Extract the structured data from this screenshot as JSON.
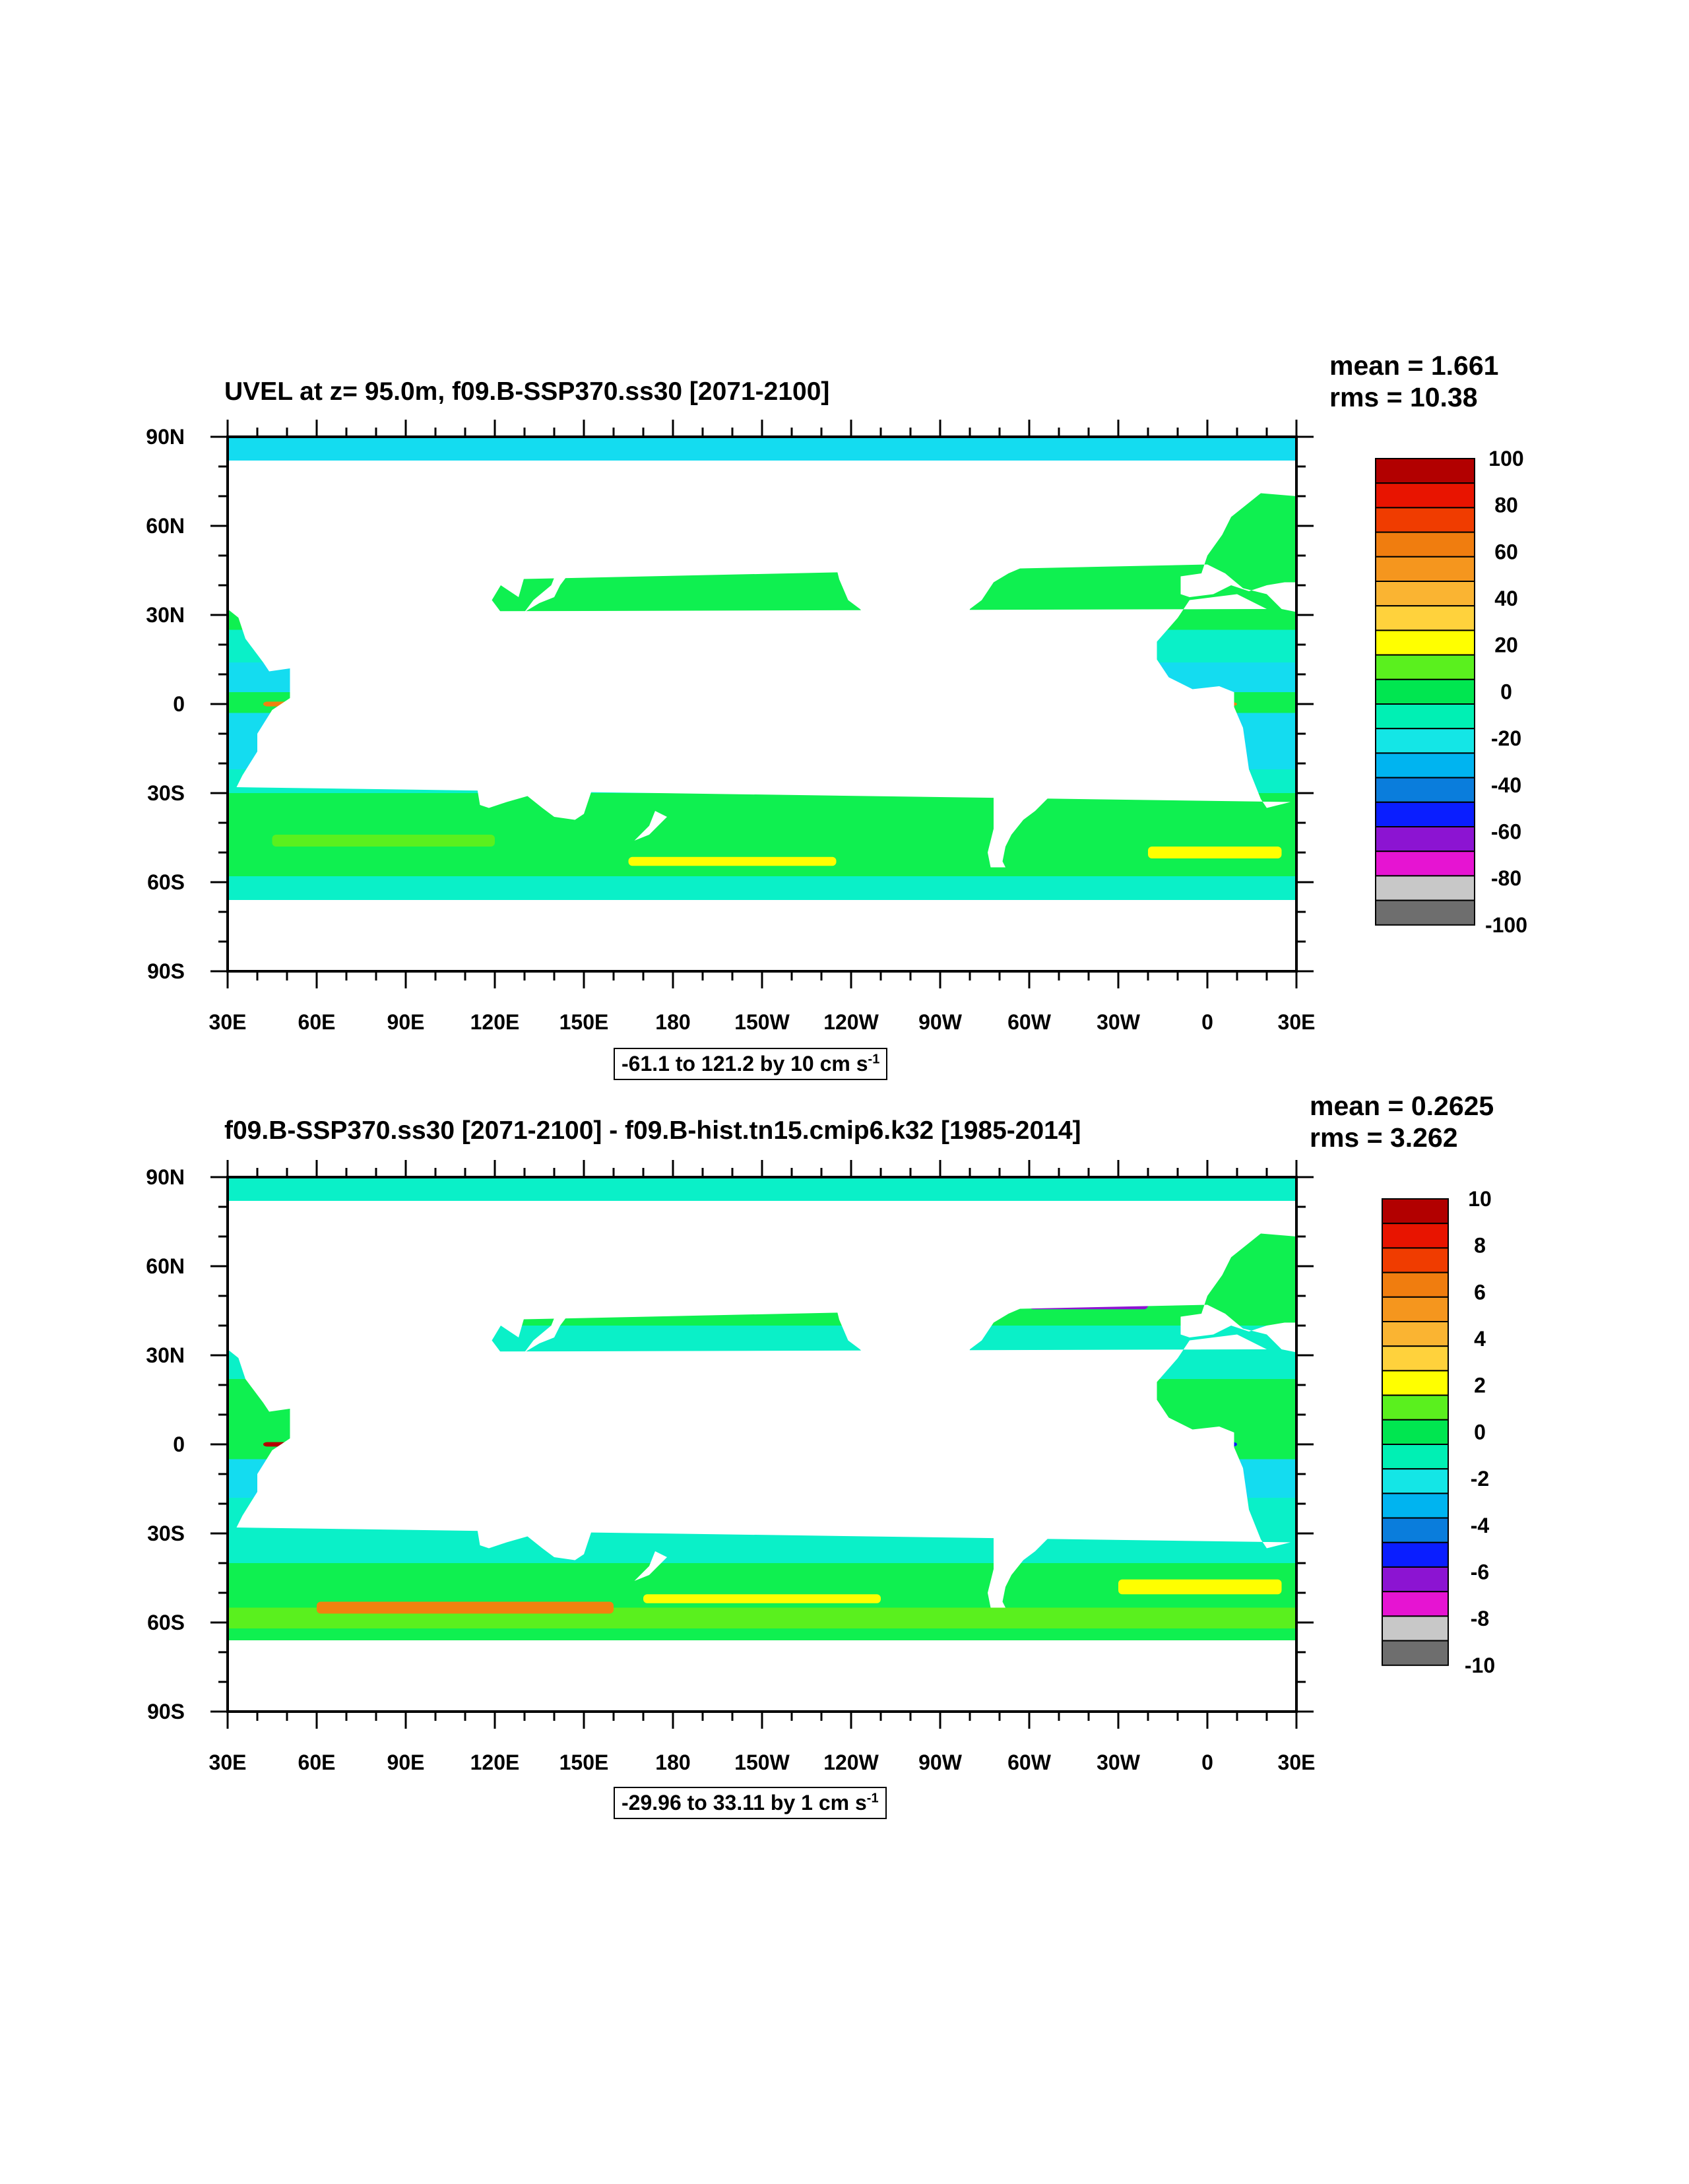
{
  "panels": [
    {
      "title": "UVEL at z=  95.0m, f09.B-SSP370.ss30 [2071-2100]",
      "mean_text": "mean = 1.661",
      "rms_text": "rms = 10.38",
      "range_text": "-61.1 to 121.2 by 10 cm s",
      "range_sup": "-1",
      "colorbar_labels": [
        "100",
        "80",
        "60",
        "40",
        "20",
        "0",
        "-20",
        "-40",
        "-60",
        "-80",
        "-100"
      ]
    },
    {
      "title": "f09.B-SSP370.ss30 [2071-2100] - f09.B-hist.tn15.cmip6.k32 [1985-2014]",
      "mean_text": "mean = 0.2625",
      "rms_text": "rms = 3.262",
      "range_text": "-29.96 to 33.11 by 1 cm s",
      "range_sup": "-1",
      "colorbar_labels": [
        "10",
        "8",
        "6",
        "4",
        "2",
        "0",
        "-2",
        "-4",
        "-6",
        "-8",
        "-10"
      ]
    }
  ],
  "lat_labels": [
    "90N",
    "60N",
    "30N",
    "0",
    "30S",
    "60S",
    "90S"
  ],
  "lon_labels": [
    "30E",
    "60E",
    "90E",
    "120E",
    "150E",
    "180",
    "150W",
    "120W",
    "90W",
    "60W",
    "30W",
    "0",
    "30E"
  ],
  "colorbar_colors": [
    "#b20000",
    "#e81400",
    "#f03c00",
    "#f07d0f",
    "#f5961e",
    "#fab432",
    "#ffd23c",
    "#ffff00",
    "#5af01e",
    "#00e650",
    "#00f0b4",
    "#14e6e6",
    "#00b4f0",
    "#0a7ddc",
    "#0a1eff",
    "#8c14d2",
    "#e614d2",
    "#c8c8c8",
    "#6e6e6e"
  ],
  "field_colors": {
    "land": "#ffffff",
    "ocean_green": "#0ff050",
    "ocean_teal": "#0af0c8",
    "ocean_cyan": "#14dcf0",
    "jet_red": "#b40000",
    "jet_orange": "#f0820f",
    "jet_yellow": "#ffff00",
    "jet_purple": "#8c14d2",
    "jet_blue": "#0a1eff",
    "jet_lime": "#5af01e"
  }
}
